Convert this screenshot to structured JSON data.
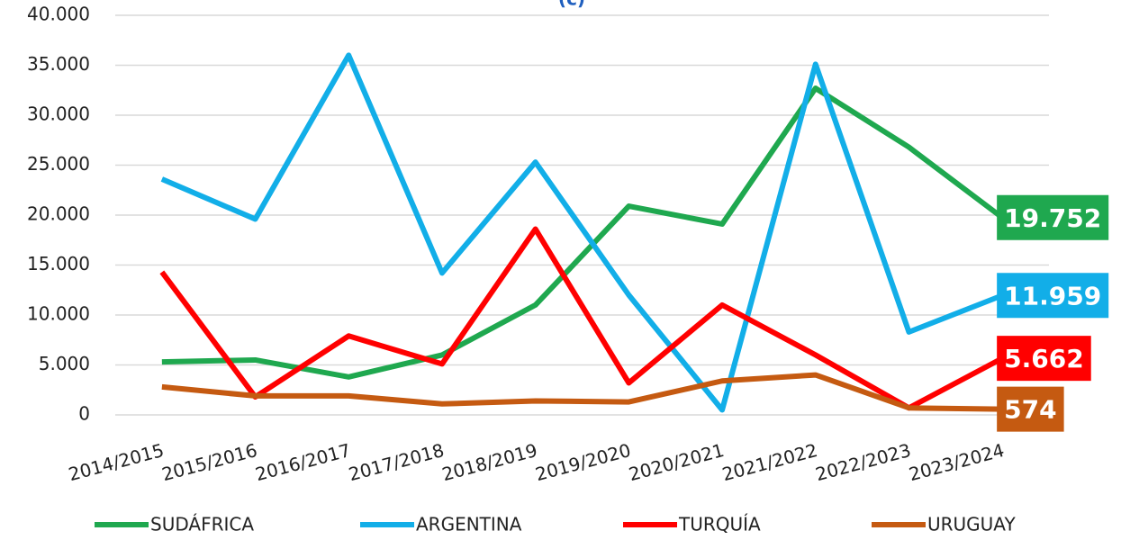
{
  "chart_data": {
    "type": "line",
    "title": "(c)",
    "categories": [
      "2014/2015",
      "2015/2016",
      "2016/2017",
      "2017/2018",
      "2018/2019",
      "2019/2020",
      "2020/2021",
      "2021/2022",
      "2022/2023",
      "2023/2024"
    ],
    "series": [
      {
        "name": "SUDÁFRICA",
        "color": "#1fa84f",
        "values": [
          5300,
          5500,
          3800,
          6000,
          11000,
          20900,
          19100,
          32700,
          26800,
          19752
        ],
        "value_labels": [
          null,
          null,
          null,
          null,
          null,
          null,
          null,
          null,
          null,
          "19.752"
        ]
      },
      {
        "name": "ARGENTINA",
        "color": "#12aee8",
        "values": [
          23600,
          19600,
          36000,
          14200,
          25300,
          12000,
          500,
          35100,
          8300,
          11959
        ],
        "value_labels": [
          null,
          null,
          null,
          null,
          null,
          null,
          null,
          null,
          null,
          "11.959"
        ]
      },
      {
        "name": "TURQUÍA",
        "color": "#ff0000",
        "values": [
          14300,
          1800,
          7900,
          5100,
          18600,
          3200,
          11000,
          6000,
          700,
          5662
        ],
        "value_labels": [
          null,
          null,
          null,
          null,
          null,
          null,
          null,
          null,
          null,
          "5.662"
        ]
      },
      {
        "name": "URUGUAY",
        "color": "#c55a11",
        "values": [
          2800,
          1900,
          1900,
          1100,
          1400,
          1300,
          3400,
          4000,
          700,
          574
        ]
      }
    ],
    "ylim": [
      0,
      40000
    ],
    "yticks": [
      0,
      {
        "value": 5000,
        "label": "5.000"
      },
      {
        "value": 10000,
        "label": "10.000"
      },
      {
        "value": 15000,
        "label": "15.000"
      },
      {
        "value": 20000,
        "label": "20.000"
      },
      {
        "value": 25000,
        "label": "25.000"
      },
      {
        "value": 30000,
        "label": "30.000"
      },
      {
        "value": 35000,
        "label": "35.000"
      },
      {
        "value": 40000,
        "label": "40.000"
      }
    ],
    "grid": true,
    "legend": "bottom"
  }
}
